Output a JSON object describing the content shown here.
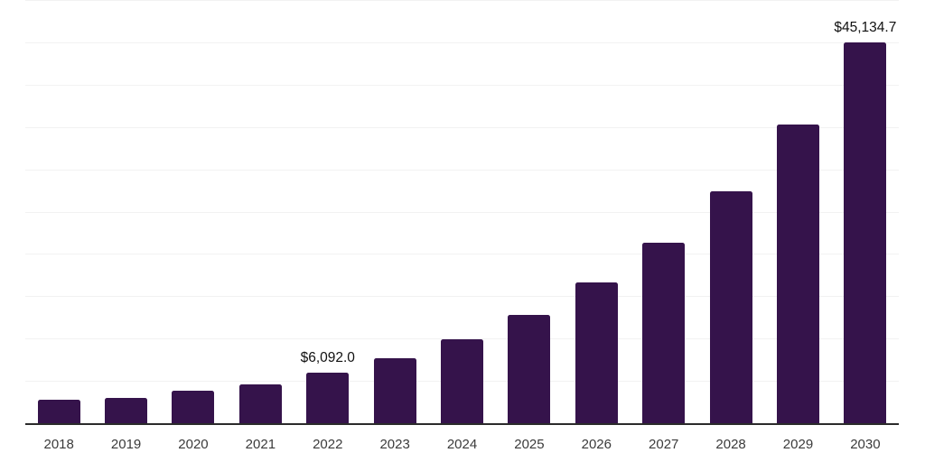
{
  "chart_data": {
    "type": "bar",
    "title": "",
    "xlabel": "",
    "ylabel": "",
    "categories": [
      "2018",
      "2019",
      "2020",
      "2021",
      "2022",
      "2023",
      "2024",
      "2025",
      "2026",
      "2027",
      "2028",
      "2029",
      "2030"
    ],
    "values": [
      2850,
      3120,
      3910,
      4720,
      6092.0,
      7800,
      10030,
      12950,
      16700,
      21450,
      27500,
      35400,
      45134.7
    ],
    "data_labels": {
      "2022": "$6,092.0",
      "2030": "$45,134.7"
    },
    "ylim": [
      0,
      50000
    ],
    "gridline_step": 5000,
    "grid": "horizontal",
    "legend": "none"
  },
  "style": {
    "background": "#FFFFFF",
    "bar_color": "#35134B",
    "axis_color": "#2B2B2B",
    "gridline_color": "#F2F2F2",
    "tick_label_color": "#3B3B3B",
    "data_label_color": "#111111"
  }
}
